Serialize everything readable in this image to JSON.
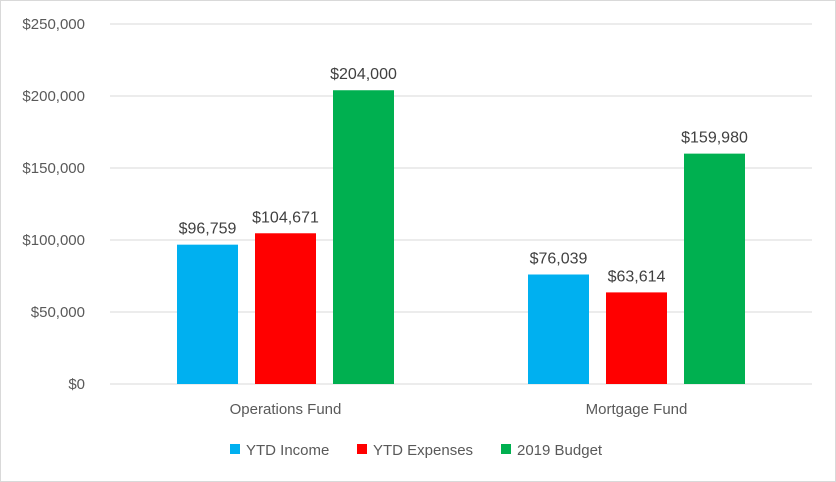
{
  "chart_data": {
    "type": "bar",
    "title": "",
    "xlabel": "",
    "ylabel": "",
    "categories": [
      "Operations Fund",
      "Mortgage Fund"
    ],
    "series": [
      {
        "name": "YTD Income",
        "values": [
          96759,
          76039
        ],
        "labels": [
          "$96,759",
          "$76,039"
        ],
        "color": "#00b0f0"
      },
      {
        "name": "YTD Expenses",
        "values": [
          104671,
          63614
        ],
        "labels": [
          "$104,671",
          "$63,614"
        ],
        "color": "#ff0000"
      },
      {
        "name": "2019 Budget",
        "values": [
          204000,
          159980
        ],
        "labels": [
          "$204,000",
          "$159,980"
        ],
        "color": "#00b050"
      }
    ],
    "ylim": [
      0,
      250000
    ],
    "yticks": [
      0,
      50000,
      100000,
      150000,
      200000,
      250000
    ],
    "ytick_labels": [
      "$0",
      "$50,000",
      "$100,000",
      "$150,000",
      "$200,000",
      "$250,000"
    ],
    "grid": true,
    "legend": "bottom"
  }
}
